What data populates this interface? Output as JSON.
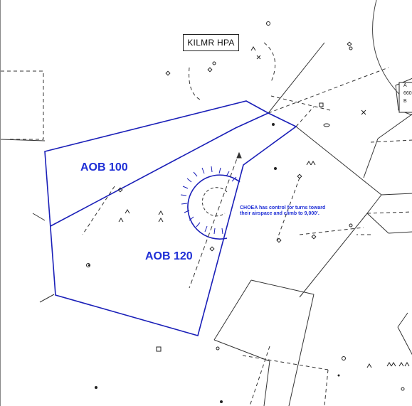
{
  "navaid": {
    "label": "KILMR HPA"
  },
  "sectors": [
    {
      "label": "AOB 100"
    },
    {
      "label": "AOB 120"
    }
  ],
  "note": {
    "line1": "CHOEA has control for turns toward",
    "line2": "their airspace and climb to 9,000'."
  },
  "edge_labels": {
    "a": "A",
    "num": "660",
    "b": "B"
  },
  "colors": {
    "sector_line": "#1a1fb8",
    "label": "#1f2fd6",
    "linework": "#333333"
  }
}
